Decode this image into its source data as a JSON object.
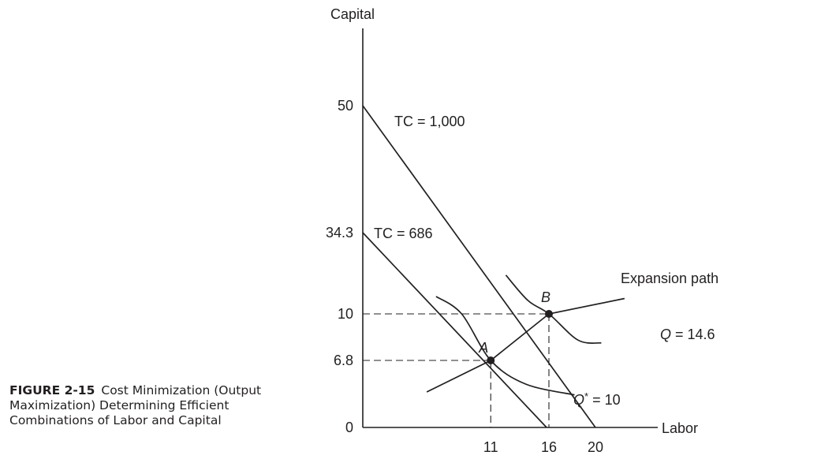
{
  "caption": {
    "label": "FIGURE 2-15",
    "text": "Cost Minimization (Output Maximization) Determining Efficient Combinations of Labor and Capital"
  },
  "chart_data": {
    "type": "line",
    "title": "",
    "xlabel": "Labor",
    "ylabel": "Capital",
    "xticks": [
      "11",
      "16",
      "20"
    ],
    "yticks": [
      "0",
      "6.8",
      "10",
      "34.3",
      "50"
    ],
    "series": [
      {
        "name": "TC = 1,000",
        "kind": "isocost",
        "points": [
          [
            0,
            50
          ],
          [
            20,
            0
          ]
        ]
      },
      {
        "name": "TC = 686",
        "kind": "isocost",
        "points": [
          [
            0,
            34.3
          ],
          [
            15.8,
            0
          ]
        ]
      },
      {
        "name": "Expansion path",
        "kind": "path",
        "points": [
          [
            5.5,
            3.6
          ],
          [
            11,
            6.8
          ],
          [
            16,
            10
          ],
          [
            22.5,
            14.6
          ]
        ]
      },
      {
        "name": "Q* = 10",
        "kind": "isoquant",
        "points": [
          [
            6.3,
            15.2
          ],
          [
            8.5,
            10
          ],
          [
            11,
            6.8
          ],
          [
            14,
            4.4
          ],
          [
            18.2,
            3.3
          ]
        ]
      },
      {
        "name": "Q = 14.6",
        "kind": "isoquant",
        "points": [
          [
            12.3,
            21.6
          ],
          [
            14.2,
            14
          ],
          [
            16,
            10
          ],
          [
            18.5,
            8.2
          ],
          [
            20.5,
            8
          ]
        ]
      }
    ],
    "points": [
      {
        "label": "A",
        "x": 11,
        "y": 6.8
      },
      {
        "label": "B",
        "x": 16,
        "y": 10
      }
    ],
    "legend": "none",
    "grid": false
  }
}
